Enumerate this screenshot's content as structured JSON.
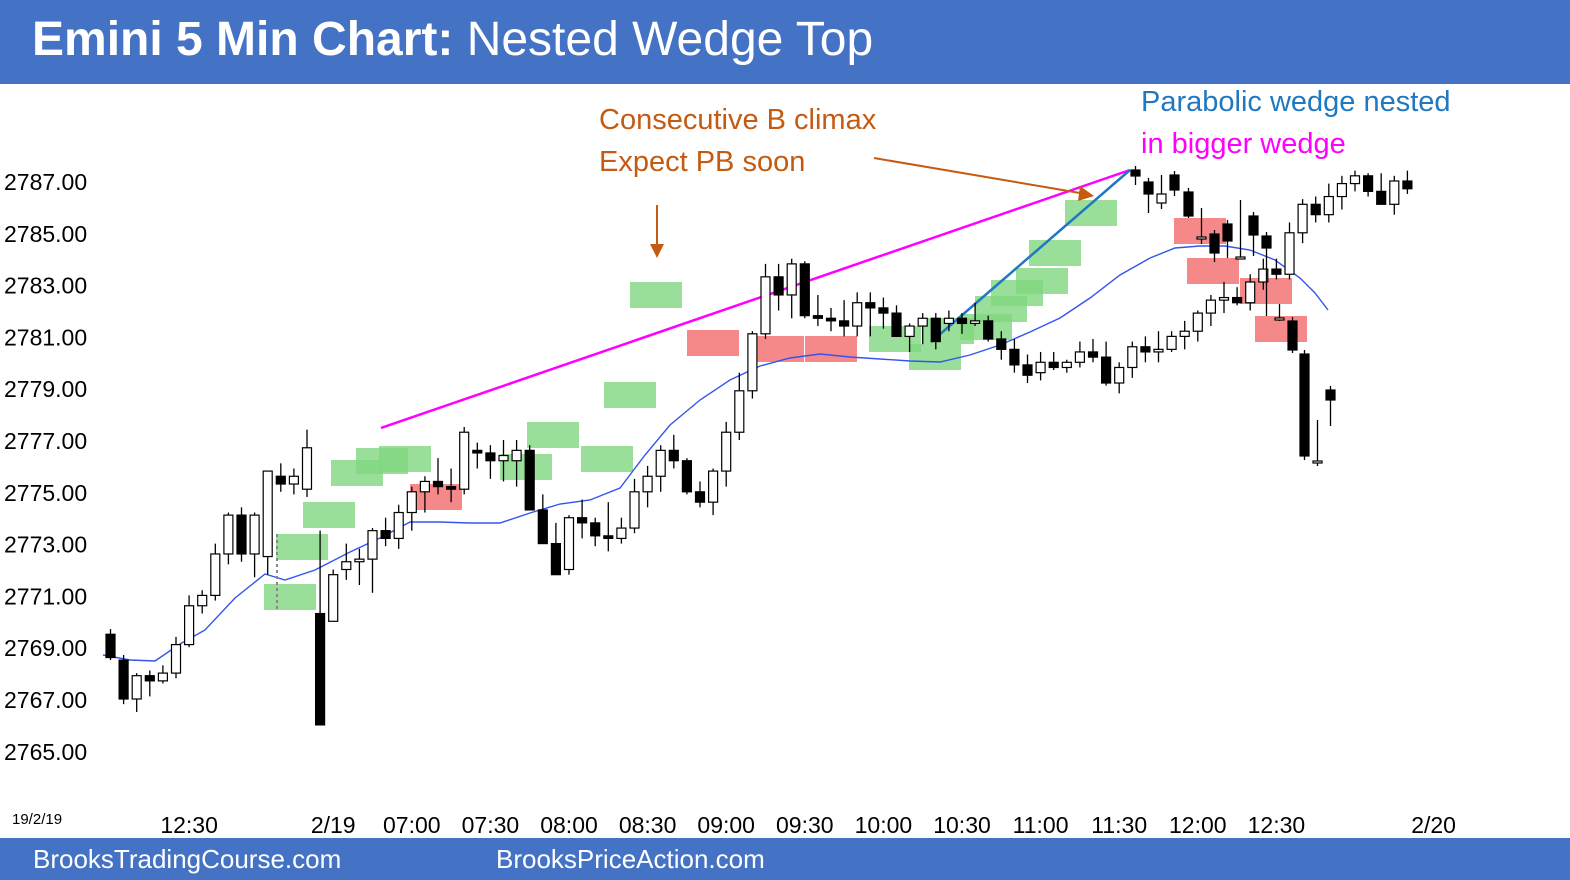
{
  "header": {
    "title_bold": "Emini 5 Min Chart:",
    "title_rest": " Nested Wedge Top"
  },
  "footer": {
    "left": "BrooksTradingCourse.com",
    "center": "BrooksPriceAction.com"
  },
  "colors": {
    "banner": "#4472c4",
    "ema": "#3355ee",
    "wedge_line": "#ff00ff",
    "channel_line": "#1f78c1",
    "arrow": "#c55a11",
    "bull_box": "#7fd77f",
    "bear_box": "#f26b6b"
  },
  "chart_data": {
    "type": "candlestick",
    "title": "Emini 5 Min Chart: Nested Wedge Top",
    "date_label": "19/2/19",
    "y_ticks": [
      "2787.00",
      "2785.00",
      "2783.00",
      "2781.00",
      "2779.00",
      "2777.00",
      "2775.00",
      "2773.00",
      "2771.00",
      "2769.00",
      "2767.00",
      "2765.00"
    ],
    "x_ticks": [
      {
        "label": "12:30",
        "bar": 6
      },
      {
        "label": "2/19",
        "bar": 17
      },
      {
        "label": "07:00",
        "bar": 23
      },
      {
        "label": "07:30",
        "bar": 29
      },
      {
        "label": "08:00",
        "bar": 35
      },
      {
        "label": "08:30",
        "bar": 41
      },
      {
        "label": "09:00",
        "bar": 47
      },
      {
        "label": "09:30",
        "bar": 53
      },
      {
        "label": "10:00",
        "bar": 59
      },
      {
        "label": "10:30",
        "bar": 65
      },
      {
        "label": "11:00",
        "bar": 71
      },
      {
        "label": "11:30",
        "bar": 77
      },
      {
        "label": "12:00",
        "bar": 83
      },
      {
        "label": "12:30",
        "bar": 89
      },
      {
        "label": "2/20",
        "bar": 101
      }
    ],
    "ylim": [
      2764.5,
      2789.0
    ],
    "candles": [
      [
        2769.5,
        2769.7,
        2768.5,
        2768.6
      ],
      [
        2768.5,
        2768.7,
        2766.8,
        2767.0
      ],
      [
        2767.0,
        2768.0,
        2766.5,
        2767.9
      ],
      [
        2767.9,
        2768.1,
        2767.1,
        2767.7
      ],
      [
        2767.7,
        2768.3,
        2767.6,
        2768.0
      ],
      [
        2768.0,
        2769.4,
        2767.8,
        2769.1
      ],
      [
        2769.1,
        2771.0,
        2769.0,
        2770.6
      ],
      [
        2770.6,
        2771.2,
        2770.3,
        2771.0
      ],
      [
        2771.0,
        2773.0,
        2770.8,
        2772.6
      ],
      [
        2772.6,
        2774.2,
        2772.2,
        2774.1
      ],
      [
        2774.1,
        2774.4,
        2772.3,
        2772.6
      ],
      [
        2772.6,
        2774.2,
        2771.7,
        2774.1
      ],
      [
        2772.5,
        2775.8,
        2771.8,
        2775.8
      ],
      [
        2775.6,
        2776.1,
        2775.0,
        2775.3
      ],
      [
        2775.3,
        2775.9,
        2774.9,
        2775.6
      ],
      [
        2775.1,
        2777.4,
        2774.8,
        2776.7
      ],
      [
        2770.3,
        2773.5,
        2766.0,
        2766.0
      ],
      [
        2770.0,
        2772.0,
        2770.0,
        2771.8
      ],
      [
        2772.0,
        2773.0,
        2771.6,
        2772.3
      ],
      [
        2772.3,
        2772.8,
        2771.4,
        2772.4
      ],
      [
        2772.4,
        2773.6,
        2771.1,
        2773.5
      ],
      [
        2773.5,
        2774.0,
        2772.9,
        2773.2
      ],
      [
        2773.2,
        2774.5,
        2772.8,
        2774.2
      ],
      [
        2774.2,
        2775.2,
        2773.5,
        2775.0
      ],
      [
        2775.0,
        2775.6,
        2774.2,
        2775.4
      ],
      [
        2775.4,
        2776.3,
        2774.9,
        2775.2
      ],
      [
        2775.2,
        2775.9,
        2774.6,
        2775.1
      ],
      [
        2775.1,
        2777.5,
        2774.9,
        2777.3
      ],
      [
        2776.6,
        2776.9,
        2775.9,
        2776.5
      ],
      [
        2776.5,
        2776.8,
        2775.5,
        2776.2
      ],
      [
        2776.2,
        2777.0,
        2775.4,
        2776.4
      ],
      [
        2776.2,
        2777.0,
        2775.2,
        2776.6
      ],
      [
        2776.6,
        2776.8,
        2774.3,
        2774.3
      ],
      [
        2774.3,
        2774.9,
        2773.0,
        2773.0
      ],
      [
        2773.0,
        2773.8,
        2771.8,
        2771.8
      ],
      [
        2772.0,
        2774.1,
        2771.8,
        2774.0
      ],
      [
        2774.0,
        2774.7,
        2773.2,
        2773.8
      ],
      [
        2773.8,
        2774.0,
        2772.9,
        2773.3
      ],
      [
        2773.3,
        2774.6,
        2772.7,
        2773.2
      ],
      [
        2773.2,
        2774.0,
        2773.0,
        2773.6
      ],
      [
        2773.6,
        2775.5,
        2773.4,
        2775.0
      ],
      [
        2775.0,
        2776.0,
        2774.4,
        2775.6
      ],
      [
        2775.6,
        2776.8,
        2775.0,
        2776.6
      ],
      [
        2776.6,
        2777.2,
        2775.9,
        2776.2
      ],
      [
        2776.2,
        2776.3,
        2774.9,
        2775.0
      ],
      [
        2775.0,
        2775.4,
        2774.4,
        2774.6
      ],
      [
        2774.6,
        2775.9,
        2774.1,
        2775.8
      ],
      [
        2775.8,
        2777.7,
        2775.2,
        2777.3
      ],
      [
        2777.3,
        2779.6,
        2777.0,
        2778.9
      ],
      [
        2778.9,
        2781.2,
        2778.6,
        2781.1
      ],
      [
        2781.1,
        2783.8,
        2780.9,
        2783.3
      ],
      [
        2783.3,
        2783.8,
        2782.0,
        2782.6
      ],
      [
        2782.6,
        2784.0,
        2781.7,
        2783.8
      ],
      [
        2783.8,
        2783.9,
        2781.7,
        2781.8
      ],
      [
        2781.8,
        2782.6,
        2781.4,
        2781.7
      ],
      [
        2781.7,
        2782.1,
        2781.2,
        2781.6
      ],
      [
        2781.6,
        2782.4,
        2781.0,
        2781.4
      ],
      [
        2781.4,
        2782.7,
        2781.0,
        2782.3
      ],
      [
        2782.3,
        2782.7,
        2781.0,
        2782.1
      ],
      [
        2782.1,
        2782.5,
        2781.3,
        2781.9
      ],
      [
        2781.9,
        2782.2,
        2781.0,
        2781.0
      ],
      [
        2781.0,
        2781.5,
        2780.4,
        2781.4
      ],
      [
        2781.4,
        2781.9,
        2780.7,
        2781.7
      ],
      [
        2781.7,
        2781.9,
        2780.5,
        2780.8
      ],
      [
        2781.5,
        2782.0,
        2781.2,
        2781.7
      ],
      [
        2781.7,
        2781.9,
        2781.1,
        2781.5
      ],
      [
        2781.5,
        2782.3,
        2781.4,
        2781.6
      ],
      [
        2781.6,
        2781.8,
        2780.8,
        2780.9
      ],
      [
        2780.9,
        2781.2,
        2780.1,
        2780.5
      ],
      [
        2780.5,
        2780.9,
        2779.6,
        2779.9
      ],
      [
        2779.9,
        2780.3,
        2779.2,
        2779.5
      ],
      [
        2779.6,
        2780.4,
        2779.3,
        2780.0
      ],
      [
        2780.0,
        2780.4,
        2779.7,
        2779.8
      ],
      [
        2779.8,
        2780.1,
        2779.6,
        2780.0
      ],
      [
        2780.0,
        2780.8,
        2779.8,
        2780.4
      ],
      [
        2780.4,
        2780.9,
        2780.0,
        2780.2
      ],
      [
        2780.2,
        2780.8,
        2779.1,
        2779.2
      ],
      [
        2779.2,
        2780.0,
        2778.8,
        2779.8
      ],
      [
        2779.8,
        2780.8,
        2779.4,
        2780.6
      ],
      [
        2780.6,
        2781.0,
        2780.0,
        2780.4
      ],
      [
        2780.4,
        2781.2,
        2780.0,
        2780.5
      ],
      [
        2780.5,
        2781.2,
        2780.4,
        2781.0
      ],
      [
        2781.0,
        2781.6,
        2780.5,
        2781.2
      ],
      [
        2781.2,
        2782.0,
        2780.8,
        2781.9
      ],
      [
        2781.9,
        2782.6,
        2781.4,
        2782.4
      ],
      [
        2782.4,
        2783.1,
        2781.9,
        2782.5
      ],
      [
        2782.5,
        2782.9,
        2782.2,
        2782.3
      ],
      [
        2782.3,
        2783.4,
        2782.0,
        2783.1
      ],
      [
        2783.1,
        2784.0,
        2782.8,
        2783.6
      ],
      [
        2783.6,
        2784.0,
        2783.2,
        2783.4
      ],
      [
        2783.4,
        2785.4,
        2783.2,
        2785.0
      ],
      [
        2785.0,
        2786.3,
        2784.6,
        2786.1
      ],
      [
        2786.1,
        2786.4,
        2785.4,
        2785.7
      ],
      [
        2785.7,
        2786.9,
        2785.4,
        2786.4
      ],
      [
        2786.4,
        2787.2,
        2785.9,
        2786.9
      ],
      [
        2786.9,
        2787.4,
        2786.6,
        2787.2
      ],
      [
        2787.2,
        2787.3,
        2786.4,
        2786.6
      ],
      [
        2786.6,
        2787.3,
        2786.1,
        2786.1
      ],
      [
        2786.1,
        2787.2,
        2785.7,
        2787.0
      ],
      [
        2787.0,
        2787.4,
        2786.5,
        2786.7
      ]
    ],
    "annotations": [
      {
        "text": "Consecutive B climax",
        "color": "#c55a11"
      },
      {
        "text": "Expect PB soon",
        "color": "#c55a11"
      },
      {
        "text": "Parabolic wedge nested",
        "color": "#1f78c1"
      },
      {
        "text": "in bigger wedge",
        "color": "#ff00ff"
      }
    ]
  }
}
